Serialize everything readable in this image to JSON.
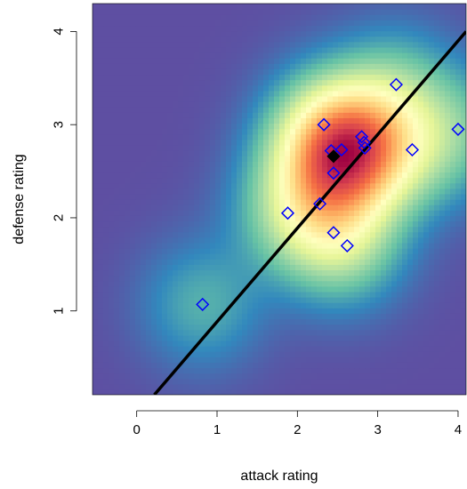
{
  "chart_data": {
    "type": "scatter",
    "title": "",
    "xlabel": "attack rating",
    "ylabel": "defense rating",
    "xlim": [
      -0.55,
      4.1
    ],
    "ylim": [
      0.1,
      4.3
    ],
    "xticks": [
      0,
      1,
      2,
      3,
      4
    ],
    "yticks": [
      1,
      2,
      3,
      4
    ],
    "background": "2D kernel density heatmap of the points (spectral color scale: purple low → yellow → dark red high), peak near (2.1, 1.9)",
    "density_colors": [
      "#5E4FA2",
      "#3288BD",
      "#66C2A5",
      "#ABDDA4",
      "#E6F598",
      "#FFFFBF",
      "#FEE08B",
      "#FDAE61",
      "#F46D43",
      "#D53E4F",
      "#9E0142"
    ],
    "series": [
      {
        "marker": "open-diamond",
        "color": "#0000FF",
        "points": [
          [
            0.82,
            1.07
          ],
          [
            1.88,
            2.05
          ],
          [
            2.28,
            2.15
          ],
          [
            2.33,
            3.0
          ],
          [
            2.42,
            2.72
          ],
          [
            2.45,
            2.48
          ],
          [
            2.45,
            1.84
          ],
          [
            2.55,
            2.73
          ],
          [
            2.62,
            1.7
          ],
          [
            2.8,
            2.87
          ],
          [
            2.83,
            2.81
          ],
          [
            2.84,
            2.75
          ],
          [
            3.23,
            3.43
          ],
          [
            3.43,
            2.73
          ],
          [
            4.0,
            2.95
          ]
        ]
      },
      {
        "marker": "filled-diamond",
        "color": "#000000",
        "points": [
          [
            2.45,
            2.66
          ]
        ]
      }
    ],
    "fit_line": {
      "color": "#000000",
      "x1": 0.22,
      "y1": 0.1,
      "x2": 4.1,
      "y2": 4.0
    }
  }
}
